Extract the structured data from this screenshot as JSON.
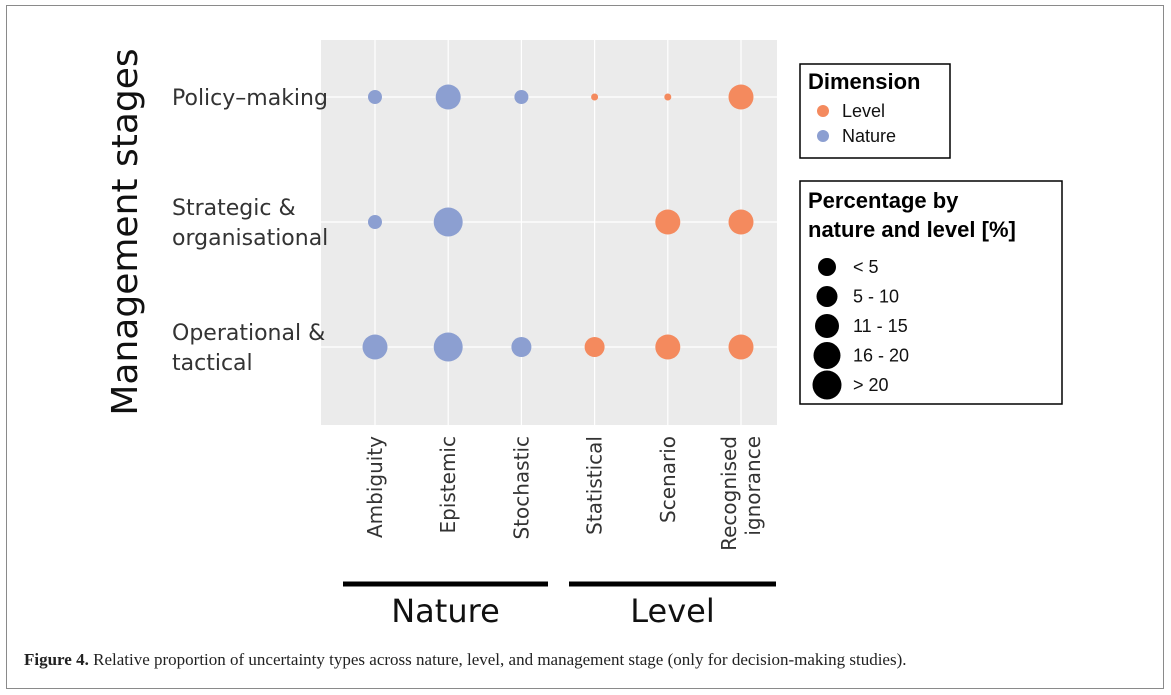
{
  "chart_data": {
    "type": "scatter",
    "ylabel": "Management stages",
    "y_categories": [
      {
        "label_lines": [
          "Policy–making"
        ]
      },
      {
        "label_lines": [
          "Strategic &",
          "organisational"
        ]
      },
      {
        "label_lines": [
          "Operational &",
          "tactical"
        ]
      }
    ],
    "x_categories": [
      {
        "label_lines": [
          "Ambiguity"
        ],
        "group": "Nature"
      },
      {
        "label_lines": [
          "Epistemic"
        ],
        "group": "Nature"
      },
      {
        "label_lines": [
          "Stochastic"
        ],
        "group": "Nature"
      },
      {
        "label_lines": [
          "Statistical"
        ],
        "group": "Level"
      },
      {
        "label_lines": [
          "Scenario"
        ],
        "group": "Level"
      },
      {
        "label_lines": [
          "Recognised",
          "ignorance"
        ],
        "group": "Level"
      }
    ],
    "groups": [
      "Nature",
      "Level"
    ],
    "size_bins": [
      "< 5",
      "5 - 10",
      "11 - 15",
      "16 -  20",
      "> 20"
    ],
    "points": [
      {
        "stage": 0,
        "type": 0,
        "size_bin": 1,
        "dimension": "Nature"
      },
      {
        "stage": 0,
        "type": 1,
        "size_bin": 3,
        "dimension": "Nature"
      },
      {
        "stage": 0,
        "type": 2,
        "size_bin": 1,
        "dimension": "Nature"
      },
      {
        "stage": 0,
        "type": 3,
        "size_bin": 0,
        "dimension": "Level"
      },
      {
        "stage": 0,
        "type": 4,
        "size_bin": 0,
        "dimension": "Level"
      },
      {
        "stage": 0,
        "type": 5,
        "size_bin": 3,
        "dimension": "Level"
      },
      {
        "stage": 1,
        "type": 0,
        "size_bin": 1,
        "dimension": "Nature"
      },
      {
        "stage": 1,
        "type": 1,
        "size_bin": 4,
        "dimension": "Nature"
      },
      {
        "stage": 1,
        "type": 4,
        "size_bin": 3,
        "dimension": "Level"
      },
      {
        "stage": 1,
        "type": 5,
        "size_bin": 3,
        "dimension": "Level"
      },
      {
        "stage": 2,
        "type": 0,
        "size_bin": 3,
        "dimension": "Nature"
      },
      {
        "stage": 2,
        "type": 1,
        "size_bin": 4,
        "dimension": "Nature"
      },
      {
        "stage": 2,
        "type": 2,
        "size_bin": 2,
        "dimension": "Nature"
      },
      {
        "stage": 2,
        "type": 3,
        "size_bin": 2,
        "dimension": "Level"
      },
      {
        "stage": 2,
        "type": 4,
        "size_bin": 3,
        "dimension": "Level"
      },
      {
        "stage": 2,
        "type": 5,
        "size_bin": 3,
        "dimension": "Level"
      }
    ],
    "legend_dimension": {
      "title": "Dimension",
      "items": [
        {
          "label": "Level",
          "color": "#f48a5e"
        },
        {
          "label": "Nature",
          "color": "#8c9fd1"
        }
      ]
    },
    "legend_size": {
      "title_lines": [
        "Percentage by",
        "nature and level [%]"
      ]
    },
    "colors": {
      "Level": "#f48a5e",
      "Nature": "#8c9fd1"
    },
    "grid": true
  },
  "caption": {
    "label": "Figure 4.",
    "text": " Relative proportion of uncertainty types across nature, level, and management stage (only for decision-making studies)."
  }
}
